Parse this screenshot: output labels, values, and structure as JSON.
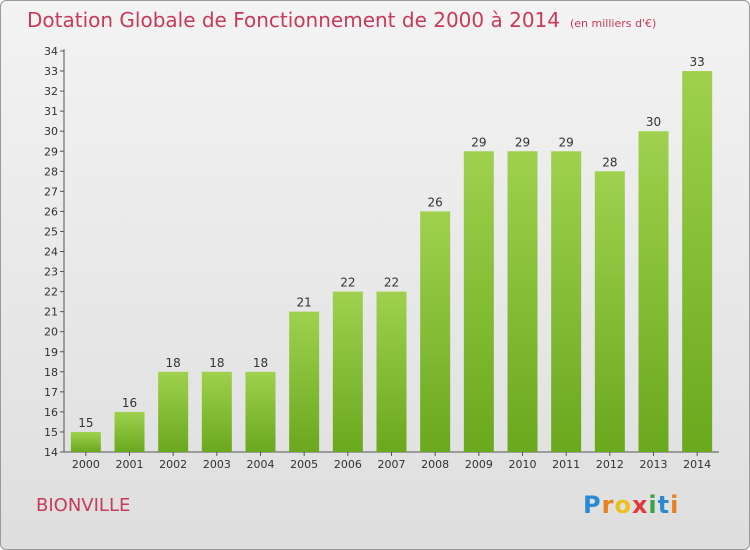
{
  "chart_data": {
    "type": "bar",
    "title": "Dotation Globale de Fonctionnement de 2000 à 2014",
    "subtitle": "(en milliers d'€)",
    "categories": [
      "2000",
      "2001",
      "2002",
      "2003",
      "2004",
      "2005",
      "2006",
      "2007",
      "2008",
      "2009",
      "2010",
      "2011",
      "2012",
      "2013",
      "2014"
    ],
    "values": [
      15,
      16,
      18,
      18,
      18,
      21,
      22,
      22,
      26,
      29,
      29,
      29,
      28,
      30,
      33
    ],
    "ylim": [
      14,
      34
    ],
    "yticks": [
      14,
      15,
      16,
      17,
      18,
      19,
      20,
      21,
      22,
      23,
      24,
      25,
      26,
      27,
      28,
      29,
      30,
      31,
      32,
      33,
      34
    ],
    "grid": false,
    "bar_color": "#8cc63f"
  },
  "commune": "BIONVILLE",
  "logo": {
    "letters": [
      "P",
      "r",
      "o",
      "x",
      "i",
      "t",
      "i"
    ],
    "colors": [
      "#2a8ad4",
      "#e8801f",
      "#e8c21f",
      "#e23a3a",
      "#3aa34a",
      "#2a8ad4",
      "#e8801f"
    ]
  }
}
